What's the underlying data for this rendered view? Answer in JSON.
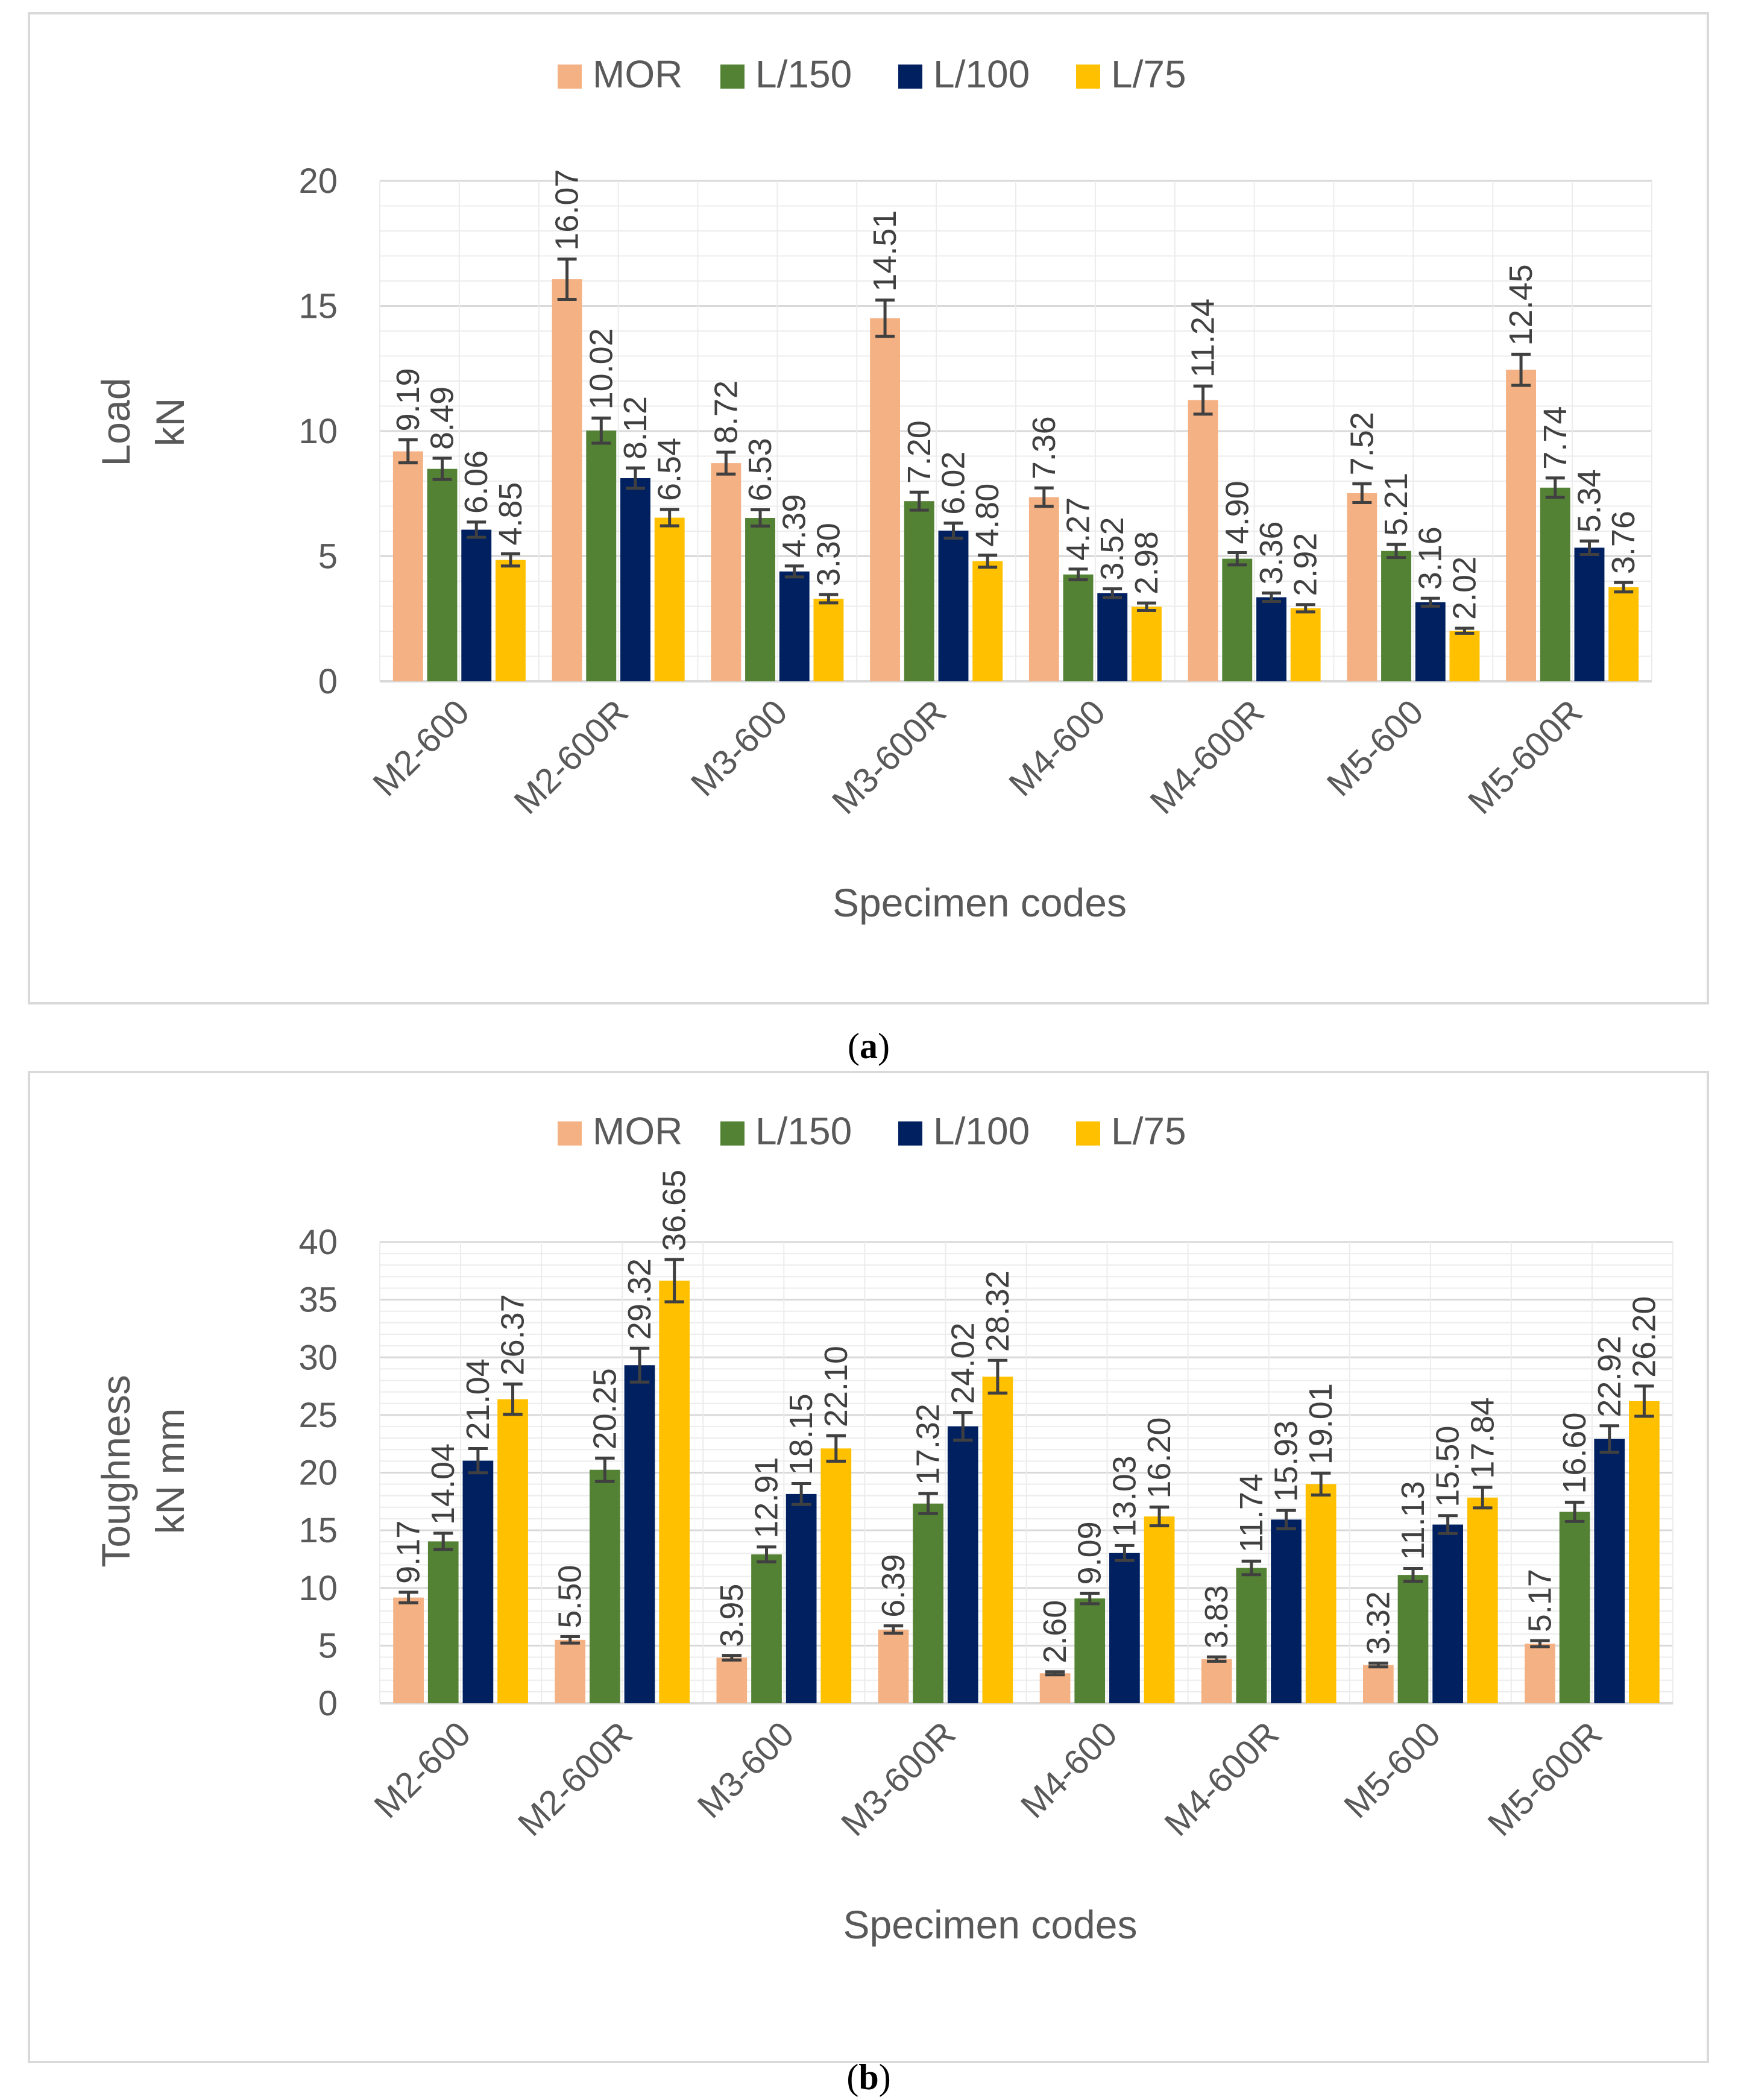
{
  "chart_data": [
    {
      "type": "bar",
      "panel_label": "a",
      "categories": [
        "M2-600",
        "M2-600R",
        "M3-600",
        "M3-600R",
        "M4-600",
        "M4-600R",
        "M5-600",
        "M5-600R"
      ],
      "series": [
        {
          "name": "MOR",
          "color": "#F4B183",
          "values": [
            9.19,
            16.07,
            8.72,
            14.51,
            7.36,
            11.24,
            7.52,
            12.45
          ],
          "labels": [
            "9.19",
            "16.07",
            "8.72",
            "14.51",
            "7.36",
            "11.24",
            "7.52",
            "12.45"
          ]
        },
        {
          "name": "L/150",
          "color": "#548235",
          "values": [
            8.49,
            10.02,
            6.53,
            7.2,
            4.27,
            4.9,
            5.21,
            7.74
          ],
          "labels": [
            "8.49",
            "10.02",
            "6.53",
            "7.20",
            "4.27",
            "4.90",
            "5.21",
            "7.74"
          ]
        },
        {
          "name": "L/100",
          "color": "#002060",
          "values": [
            6.06,
            8.12,
            4.39,
            6.02,
            3.52,
            3.36,
            3.16,
            5.34
          ],
          "labels": [
            "6.06",
            "8.12",
            "4.39",
            "6.02",
            "3.52",
            "3.36",
            "3.16",
            "5.34"
          ]
        },
        {
          "name": "L/75",
          "color": "#FFC000",
          "values": [
            4.85,
            6.54,
            3.3,
            4.8,
            2.98,
            2.92,
            2.02,
            3.76
          ],
          "labels": [
            "4.85",
            "6.54",
            "3.30",
            "4.80",
            "2.98",
            "2.92",
            "2.02",
            "3.76"
          ]
        }
      ],
      "error_fraction": 0.05,
      "ylim": [
        0,
        20
      ],
      "yticks": [
        "0",
        "5",
        "10",
        "15",
        "20"
      ],
      "ylabel_lines": [
        "Load",
        "kN"
      ],
      "xlabel": "Specimen codes",
      "legend_position": "top",
      "grid": true
    },
    {
      "type": "bar",
      "panel_label": "b",
      "categories": [
        "M2-600",
        "M2-600R",
        "M3-600",
        "M3-600R",
        "M4-600",
        "M4-600R",
        "M5-600",
        "M5-600R"
      ],
      "series": [
        {
          "name": "MOR",
          "color": "#F4B183",
          "values": [
            9.17,
            5.5,
            3.95,
            6.39,
            2.6,
            3.83,
            3.32,
            5.17
          ],
          "labels": [
            "9.17",
            "5.50",
            "3.95",
            "6.39",
            "2.60",
            "3.83",
            "3.32",
            "5.17"
          ]
        },
        {
          "name": "L/150",
          "color": "#548235",
          "values": [
            14.04,
            20.25,
            12.91,
            17.32,
            9.09,
            11.74,
            11.13,
            16.6
          ],
          "labels": [
            "14.04",
            "20.25",
            "12.91",
            "17.32",
            "9.09",
            "11.74",
            "11.13",
            "16.60"
          ]
        },
        {
          "name": "L/100",
          "color": "#002060",
          "values": [
            21.04,
            29.32,
            18.15,
            24.02,
            13.03,
            15.93,
            15.5,
            22.92
          ],
          "labels": [
            "21.04",
            "29.32",
            "18.15",
            "24.02",
            "13.03",
            "15.93",
            "15.50",
            "22.92"
          ]
        },
        {
          "name": "L/75",
          "color": "#FFC000",
          "values": [
            26.37,
            36.65,
            22.1,
            28.32,
            16.2,
            19.01,
            17.84,
            26.2
          ],
          "labels": [
            "26.37",
            "36.65",
            "22.10",
            "28.32",
            "16.20",
            "19.01",
            "17.84",
            "26.20"
          ]
        }
      ],
      "error_fraction": 0.05,
      "ylim": [
        0,
        40
      ],
      "yticks": [
        "0",
        "5",
        "10",
        "15",
        "20",
        "25",
        "30",
        "35",
        "40"
      ],
      "ylabel_lines": [
        "Toughness",
        "kN mm"
      ],
      "xlabel": "Specimen codes",
      "legend_position": "top",
      "grid": true
    }
  ]
}
